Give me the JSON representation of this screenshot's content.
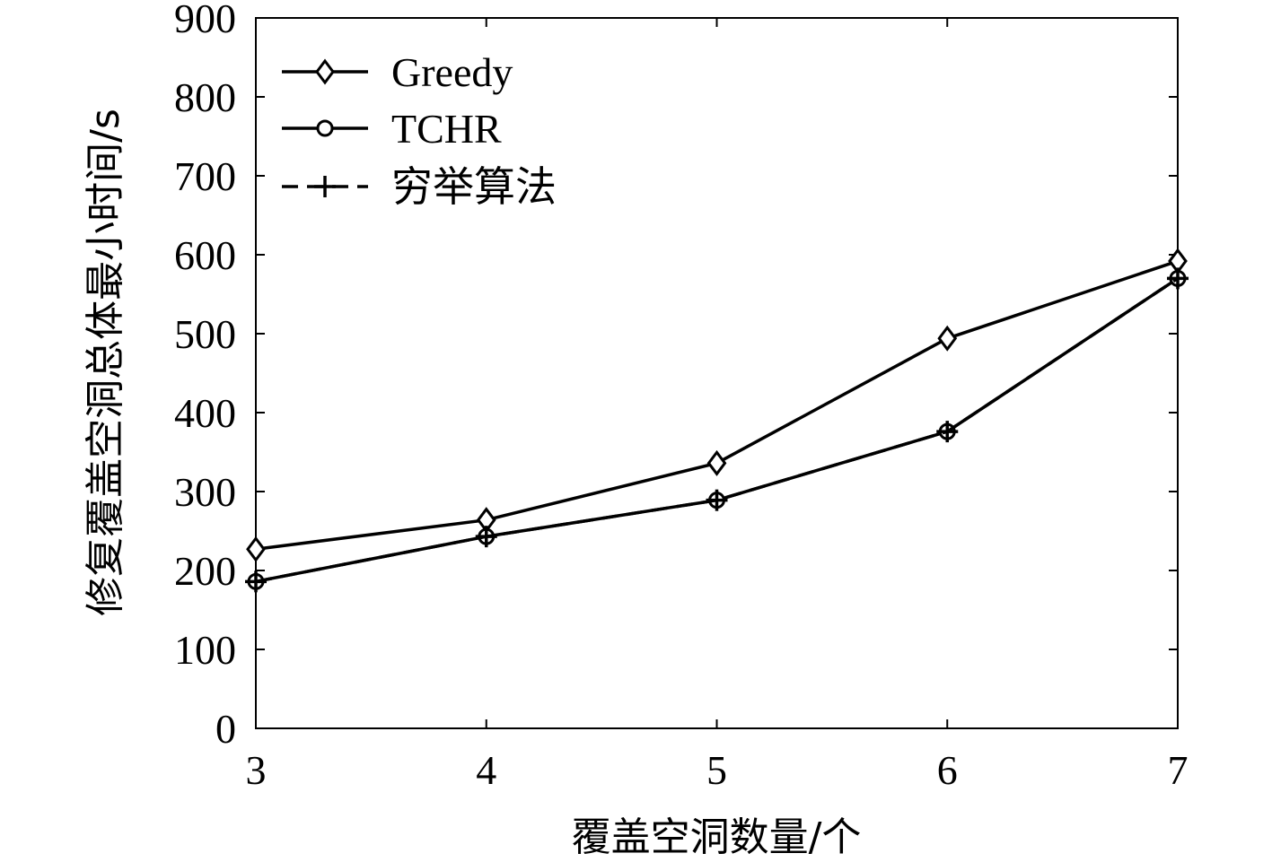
{
  "chart_data": {
    "type": "line",
    "title": "",
    "xlabel": "覆盖空洞数量/个",
    "ylabel": "修复覆盖空洞总体最小时间/s",
    "x": [
      3,
      4,
      5,
      6,
      7
    ],
    "xlim": [
      3,
      7
    ],
    "ylim": [
      0,
      900
    ],
    "xticks": [
      "3",
      "4",
      "5",
      "6",
      "7"
    ],
    "yticks": [
      "0",
      "100",
      "200",
      "300",
      "400",
      "500",
      "600",
      "700",
      "800",
      "900"
    ],
    "grid": false,
    "legend_position": "top-left",
    "series": [
      {
        "name": "Greedy",
        "values": [
          227,
          264,
          336,
          494,
          592
        ],
        "marker": "diamond",
        "line_style": "solid",
        "color": "#000000"
      },
      {
        "name": "TCHR",
        "values": [
          186,
          243,
          289,
          376,
          570
        ],
        "marker": "circle",
        "line_style": "solid",
        "color": "#000000"
      },
      {
        "name": "穷举算法",
        "values": [
          186,
          243,
          289,
          376,
          570
        ],
        "marker": "plus",
        "line_style": "dashed",
        "color": "#000000"
      }
    ]
  }
}
